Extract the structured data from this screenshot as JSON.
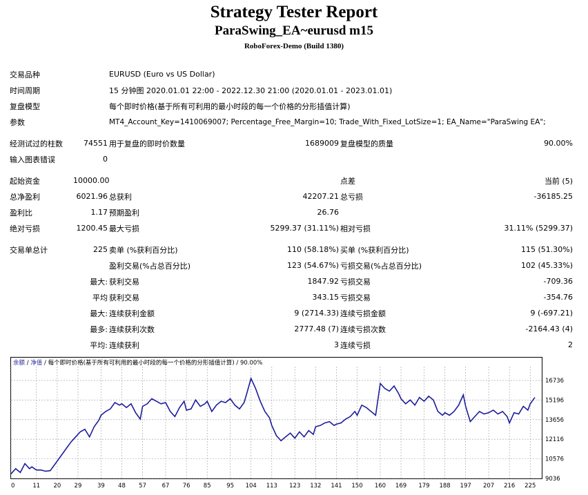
{
  "header": {
    "title": "Strategy Tester Report",
    "subtitle": "ParaSwing_EA~eurusd m15",
    "server": "RoboForex-Demo (Build 1380)"
  },
  "info": {
    "symbol_label": "交易品种",
    "symbol_value": "EURUSD (Euro vs US Dollar)",
    "period_label": "时间周期",
    "period_value": "15 分钟图 2020.01.01 22:00 - 2022.12.30 21:00 (2020.01.01 - 2023.01.01)",
    "model_label": "复盘模型",
    "model_value": "每个即时价格(基于所有可利用的最小时段的每一个价格的分形插值计算)",
    "params_label": "参数",
    "params_value": "MT4_Account_Key=1410069007; Percentage_Free_Margin=10; Trade_With_Fixed_LotSize=1; EA_Name=\"ParaSwing EA\";"
  },
  "bars": {
    "bars_label": "经测试过的柱数",
    "bars_value": "74551",
    "ticks_label": "用于复盘的即时价数量",
    "ticks_value": "1689009",
    "quality_label": "复盘模型的质量",
    "quality_value": "90.00%",
    "errors_label": "输入图表错误",
    "errors_value": "0"
  },
  "stats": {
    "deposit_label": "起始资金",
    "deposit_value": "10000.00",
    "spread_label": "点差",
    "spread_value": "当前 (5)",
    "net_label": "总净盈利",
    "net_value": "6021.96",
    "gross_profit_label": "总获利",
    "gross_profit_value": "42207.21",
    "gross_loss_label": "总亏损",
    "gross_loss_value": "-36185.25",
    "pf_label": "盈利比",
    "pf_value": "1.17",
    "payoff_label": "预期盈利",
    "payoff_value": "26.76",
    "abs_dd_label": "绝对亏损",
    "abs_dd_value": "1200.45",
    "max_dd_label": "最大亏损",
    "max_dd_value": "5299.37 (31.11%)",
    "rel_dd_label": "相对亏损",
    "rel_dd_value": "31.11% (5299.37)"
  },
  "trades": {
    "total_label": "交易单总计",
    "total_value": "225",
    "short_label": "卖单 (%获利百分比)",
    "short_value": "110 (58.18%)",
    "long_label": "买单 (%获利百分比)",
    "long_value": "115 (51.30%)",
    "profit_trades_label": "盈利交易(%占总百分比)",
    "profit_trades_value": "123 (54.67%)",
    "loss_trades_label": "亏损交易(%占总百分比)",
    "loss_trades_value": "102 (45.33%)",
    "largest_prefix": "最大:",
    "largest_profit_label": "获利交易",
    "largest_profit_value": "1847.92",
    "largest_loss_label": "亏损交易",
    "largest_loss_value": "-709.36",
    "average_prefix": "平均",
    "average_profit_label": "获利交易",
    "average_profit_value": "343.15",
    "average_loss_label": "亏损交易",
    "average_loss_value": "-354.76",
    "max_prefix": "最大:",
    "max_cons_wins_label": "连续获利金额",
    "max_cons_wins_value": "9 (2714.33)",
    "max_cons_losses_label": "连续亏损金额",
    "max_cons_losses_value": "9 (-697.21)",
    "maximal_prefix": "最多:",
    "maximal_cons_profit_label": "连续获利次数",
    "maximal_cons_profit_value": "2777.48 (7)",
    "maximal_cons_loss_label": "连续亏损次数",
    "maximal_cons_loss_value": "-2164.43 (4)",
    "avg_prefix": "平均:",
    "avg_cons_wins_label": "连续获利",
    "avg_cons_wins_value": "3",
    "avg_cons_losses_label": "连续亏损",
    "avg_cons_losses_value": "2"
  },
  "chart_data": {
    "type": "line",
    "legend_balance": "余额",
    "legend_sep1": " / ",
    "legend_equity": "净值",
    "legend_rest": " / 每个即时价格(基于所有可利用的最小时段的每一个价格的分形插值计算) / 90.00%",
    "legend_color_balance": "#2d2da0",
    "line_color": "#1c1c9a",
    "grid": true,
    "ylim": [
      9036,
      17500
    ],
    "xlim": [
      0,
      230
    ],
    "yticks": [
      "16736",
      "15196",
      "13656",
      "12116",
      "10576",
      "9036"
    ],
    "xticks": [
      "0",
      "11",
      "20",
      "29",
      "39",
      "48",
      "57",
      "67",
      "76",
      "85",
      "95",
      "104",
      "113",
      "123",
      "132",
      "141",
      "150",
      "160",
      "169",
      "179",
      "188",
      "197",
      "207",
      "216",
      "225"
    ],
    "series": [
      {
        "x": [
          0,
          2,
          4,
          6,
          8,
          9,
          11,
          13,
          15,
          17,
          20,
          22,
          24,
          26,
          28,
          30,
          32,
          34,
          36,
          38,
          39,
          41,
          43,
          45,
          47,
          48,
          50,
          52,
          54,
          56,
          57,
          59,
          61,
          63,
          65,
          67,
          69,
          71,
          73,
          75,
          76,
          78,
          80,
          82,
          84,
          85,
          87,
          89,
          91,
          93,
          95,
          97,
          99,
          101,
          102,
          104,
          106,
          108,
          110,
          112,
          113,
          115,
          117,
          119,
          121,
          123,
          125,
          127,
          129,
          131,
          132,
          134,
          136,
          138,
          140,
          141,
          143,
          145,
          147,
          149,
          150,
          152,
          154,
          156,
          158,
          160,
          162,
          164,
          166,
          168,
          169,
          171,
          173,
          175,
          177,
          179,
          181,
          183,
          185,
          187,
          188,
          190,
          192,
          194,
          196,
          197,
          199,
          201,
          203,
          205,
          207,
          209,
          211,
          213,
          215,
          216,
          218,
          220,
          222,
          224,
          225,
          227
        ],
        "y": [
          9400,
          9800,
          9500,
          10200,
          9800,
          9950,
          9700,
          9700,
          9600,
          9650,
          10400,
          10900,
          11400,
          11900,
          12300,
          12700,
          12900,
          12300,
          13100,
          13600,
          14000,
          14300,
          14500,
          15000,
          14800,
          14900,
          14600,
          14900,
          14200,
          13700,
          14700,
          14900,
          15300,
          15100,
          14900,
          15000,
          14300,
          13900,
          14600,
          15100,
          14400,
          14500,
          15200,
          14700,
          14900,
          15100,
          14300,
          14800,
          15100,
          15000,
          15300,
          14800,
          14500,
          15000,
          15600,
          16900,
          16100,
          15100,
          14300,
          13800,
          13200,
          12400,
          12000,
          12300,
          12600,
          12200,
          12700,
          12300,
          12800,
          12500,
          13100,
          13200,
          13400,
          13500,
          13200,
          13300,
          13400,
          13700,
          13900,
          14300,
          14000,
          14800,
          14600,
          14300,
          14000,
          16500,
          16100,
          15900,
          16300,
          15700,
          15300,
          14900,
          15200,
          14800,
          15400,
          15100,
          15500,
          15200,
          14300,
          14000,
          14200,
          14000,
          14300,
          14800,
          15600,
          14700,
          13500,
          13900,
          14300,
          14100,
          14200,
          14400,
          14100,
          14300,
          13900,
          13400,
          14200,
          14100,
          14700,
          14400,
          14900,
          15400
        ]
      }
    ]
  }
}
